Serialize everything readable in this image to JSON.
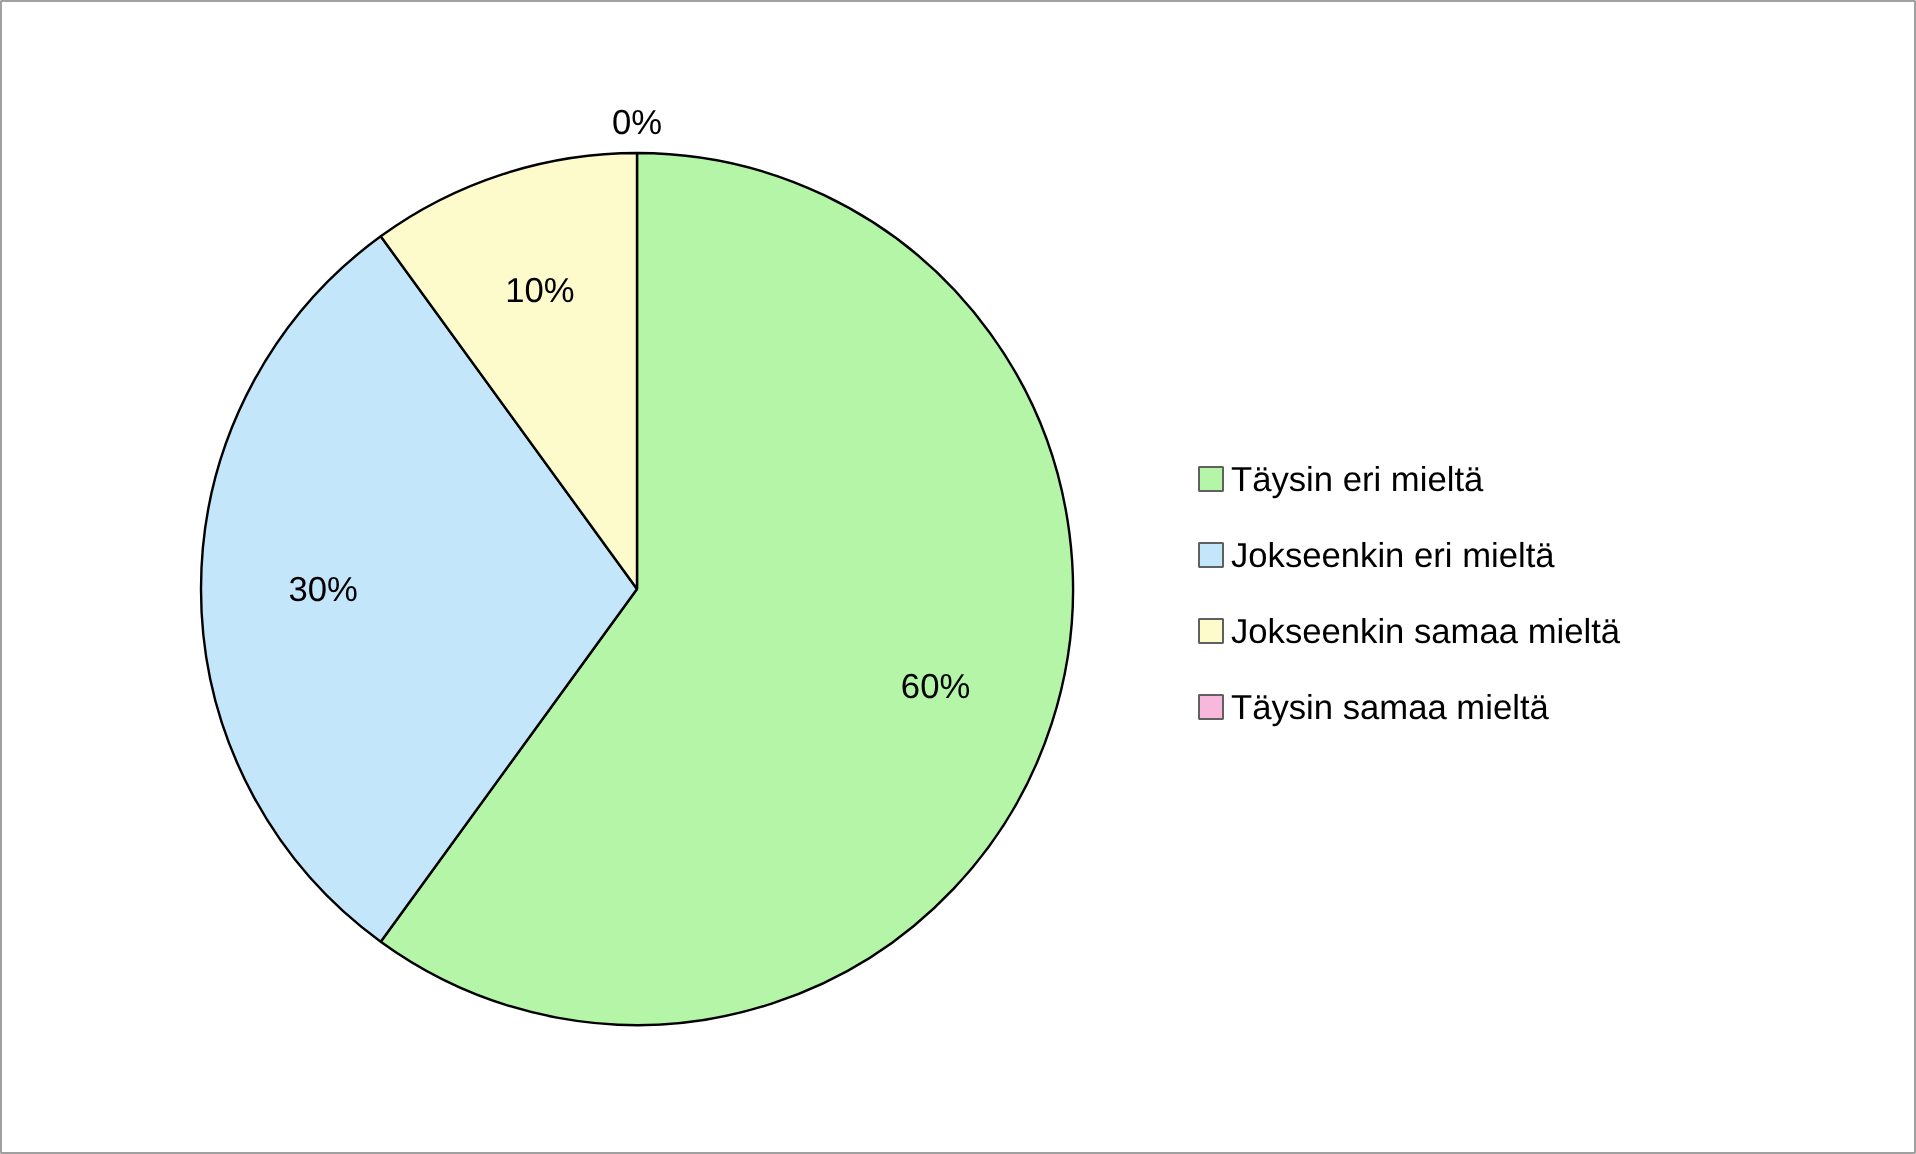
{
  "chart_data": {
    "type": "pie",
    "categories": [
      "Täysin eri mieltä",
      "Jokseenkin eri mieltä",
      "Jokseenkin samaa mieltä",
      "Täysin samaa mieltä"
    ],
    "values": [
      60,
      30,
      10,
      0
    ],
    "colors": [
      "#b4f5a8",
      "#c4e6fb",
      "#fdfbcc",
      "#f7b8dc"
    ],
    "value_labels": [
      "60%",
      "30%",
      "10%",
      "0%"
    ],
    "legend": "right"
  }
}
